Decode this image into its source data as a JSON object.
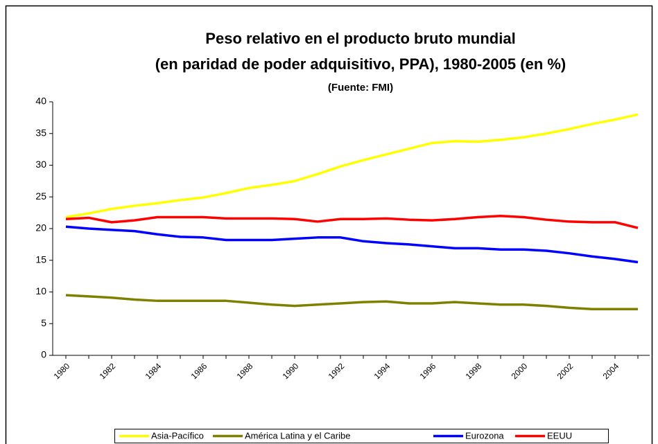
{
  "chart_data": {
    "type": "line",
    "title": "Peso relativo en el producto bruto mundial",
    "subtitle": "(en paridad de poder adquisitivo, PPA), 1980-2005 (en %)",
    "source": "(Fuente: FMI)",
    "categories": [
      "1980",
      null,
      "1982",
      null,
      "1984",
      null,
      "1986",
      null,
      "1988",
      null,
      "1990",
      null,
      "1992",
      null,
      "1994",
      null,
      "1996",
      null,
      "1998",
      null,
      "2000",
      null,
      "2002",
      null,
      "2004",
      null
    ],
    "series": [
      {
        "name": "Asia-Pacífico",
        "color": "#ffff00",
        "values": [
          21.8,
          22.4,
          23.1,
          23.6,
          24.0,
          24.5,
          24.9,
          25.6,
          26.4,
          26.9,
          27.5,
          28.6,
          29.8,
          30.8,
          31.7,
          32.6,
          33.5,
          33.8,
          33.7,
          34.0,
          34.4,
          35.0,
          35.7,
          36.5,
          37.2,
          38.0
        ]
      },
      {
        "name": "América Latina y el Caribe",
        "color": "#808000",
        "values": [
          9.5,
          9.3,
          9.1,
          8.8,
          8.6,
          8.6,
          8.6,
          8.6,
          8.3,
          8.0,
          7.8,
          8.0,
          8.2,
          8.4,
          8.5,
          8.2,
          8.2,
          8.4,
          8.2,
          8.0,
          8.0,
          7.8,
          7.5,
          7.3,
          7.3,
          7.3
        ]
      },
      {
        "name": "Eurozona",
        "color": "#0000ff",
        "values": [
          20.3,
          20.0,
          19.8,
          19.6,
          19.1,
          18.7,
          18.6,
          18.2,
          18.2,
          18.2,
          18.4,
          18.6,
          18.6,
          18.0,
          17.7,
          17.5,
          17.2,
          16.9,
          16.9,
          16.7,
          16.7,
          16.5,
          16.1,
          15.6,
          15.2,
          14.7
        ]
      },
      {
        "name": "EEUU",
        "color": "#ff0000",
        "values": [
          21.5,
          21.7,
          21.0,
          21.3,
          21.8,
          21.8,
          21.8,
          21.6,
          21.6,
          21.6,
          21.5,
          21.1,
          21.5,
          21.5,
          21.6,
          21.4,
          21.3,
          21.5,
          21.8,
          22.0,
          21.8,
          21.4,
          21.1,
          21.0,
          21.0,
          20.1
        ]
      }
    ],
    "ylim": [
      0,
      40
    ],
    "yticks": [
      0,
      5,
      10,
      15,
      20,
      25,
      30,
      35,
      40
    ],
    "legend": "bottom"
  }
}
